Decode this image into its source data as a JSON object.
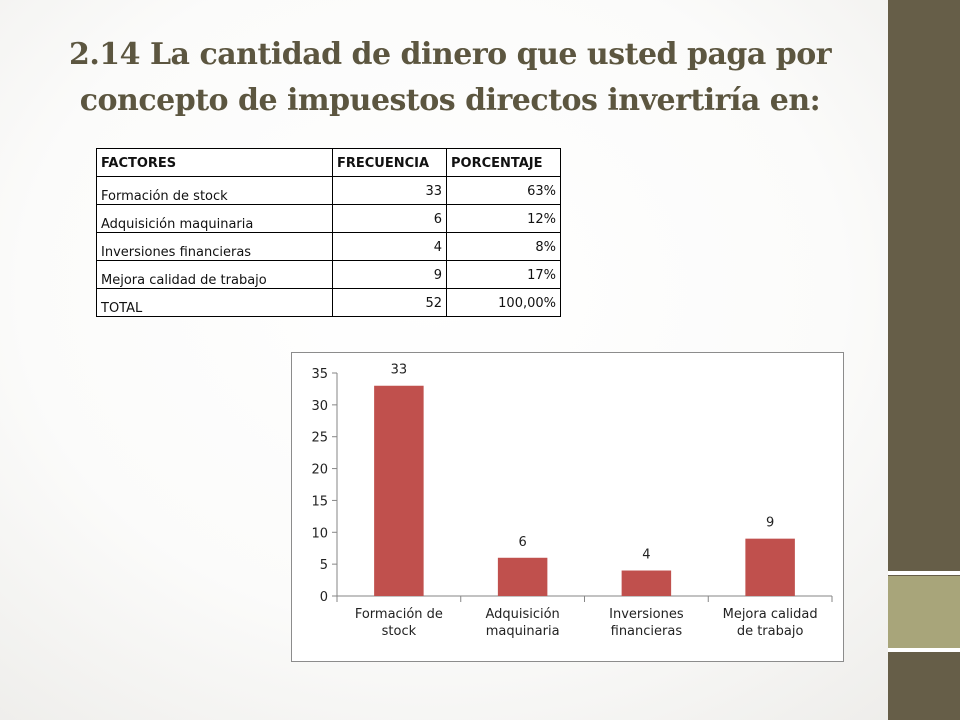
{
  "title": "2.14 La cantidad de dinero que usted paga por concepto de impuestos directos invertiría en:",
  "table": {
    "headers": [
      "FACTORES",
      "FRECUENCIA",
      "PORCENTAJE"
    ],
    "rows": [
      {
        "factor": "Formación de stock",
        "frecuencia": "33",
        "porcentaje": "63%"
      },
      {
        "factor": "Adquisición maquinaria",
        "frecuencia": "6",
        "porcentaje": "12%"
      },
      {
        "factor": "Inversiones financieras",
        "frecuencia": "4",
        "porcentaje": "8%"
      },
      {
        "factor": "Mejora calidad de trabajo",
        "frecuencia": "9",
        "porcentaje": "17%"
      },
      {
        "factor": "TOTAL",
        "frecuencia": "52",
        "porcentaje": "100,00%"
      }
    ]
  },
  "chart_data": {
    "type": "bar",
    "categories": [
      [
        "Formación de",
        "stock"
      ],
      [
        "Adquisición",
        "maquinaria"
      ],
      [
        "Inversiones",
        "financieras"
      ],
      [
        "Mejora calidad",
        "de trabajo"
      ]
    ],
    "values": [
      33,
      6,
      4,
      9
    ],
    "data_labels": [
      "33",
      "6",
      "4",
      "9"
    ],
    "y_ticks": [
      0,
      5,
      10,
      15,
      20,
      25,
      30,
      35
    ],
    "ylim": [
      0,
      35
    ],
    "title": "",
    "xlabel": "",
    "ylabel": "",
    "bar_color": "#c0504d",
    "grid": false,
    "legend": "none"
  },
  "colors": {
    "sidebar": "#665e48",
    "accent": "#a8a57a",
    "title": "#5c5640"
  }
}
